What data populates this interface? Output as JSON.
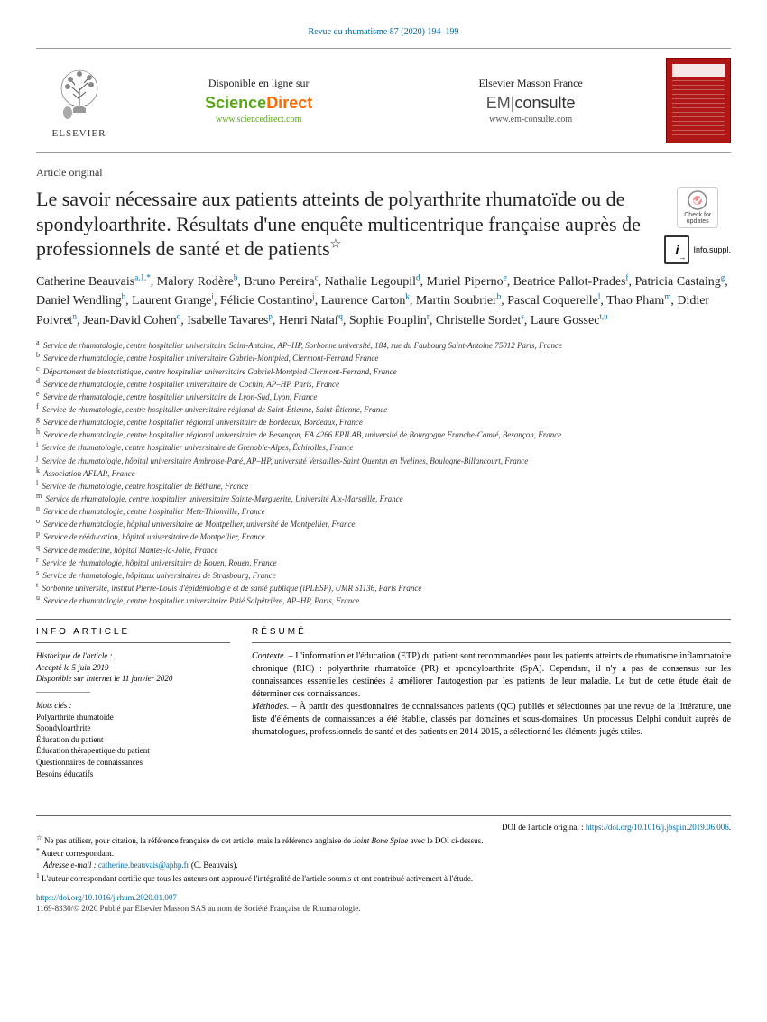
{
  "citation": "Revue du rhumatisme 87 (2020) 194–199",
  "branding": {
    "elsevier": "ELSEVIER",
    "sd_avail": "Disponible en ligne sur",
    "sd_logo_1": "Science",
    "sd_logo_2": "Direct",
    "sd_url": "www.sciencedirect.com",
    "em_title": "Elsevier Masson France",
    "em_logo_1": "EM",
    "em_logo_2": "consulte",
    "em_url": "www.em-consulte.com"
  },
  "article_type": "Article original",
  "title": "Le savoir nécessaire aux patients atteints de polyarthrite rhumatoïde ou de spondyloarthrite. Résultats d'une enquête multicentrique française auprès de professionnels de santé et de patients",
  "star": "☆",
  "badges": {
    "check": "Check for updates",
    "infosuppl": "Info.suppl."
  },
  "authors": [
    {
      "name": "Catherine Beauvais",
      "sup": "a,1,*"
    },
    {
      "name": "Malory Rodère",
      "sup": "b"
    },
    {
      "name": "Bruno Pereira",
      "sup": "c"
    },
    {
      "name": "Nathalie Legoupil",
      "sup": "d"
    },
    {
      "name": "Muriel Piperno",
      "sup": "e"
    },
    {
      "name": "Beatrice Pallot-Prades",
      "sup": "f"
    },
    {
      "name": "Patricia Castaing",
      "sup": "g"
    },
    {
      "name": "Daniel Wendling",
      "sup": "h"
    },
    {
      "name": "Laurent Grange",
      "sup": "i"
    },
    {
      "name": "Félicie Costantino",
      "sup": "j"
    },
    {
      "name": "Laurence Carton",
      "sup": "k"
    },
    {
      "name": "Martin Soubrier",
      "sup": "b"
    },
    {
      "name": "Pascal Coquerelle",
      "sup": "l"
    },
    {
      "name": "Thao Pham",
      "sup": "m"
    },
    {
      "name": "Didier Poivret",
      "sup": "n"
    },
    {
      "name": "Jean-David Cohen",
      "sup": "o"
    },
    {
      "name": "Isabelle Tavares",
      "sup": "p"
    },
    {
      "name": "Henri Nataf",
      "sup": "q"
    },
    {
      "name": "Sophie Pouplin",
      "sup": "r"
    },
    {
      "name": "Christelle Sordet",
      "sup": "s"
    },
    {
      "name": "Laure Gossec",
      "sup": "t,u"
    }
  ],
  "affiliations": [
    {
      "k": "a",
      "t": "Service de rhumatologie, centre hospitalier universitaire Saint-Antoine, AP–HP, Sorbonne université, 184, rue du Faubourg Saint-Antoine 75012 Paris, France"
    },
    {
      "k": "b",
      "t": "Service de rhumatologie, centre hospitalier universitaire Gabriel-Montpied, Clermont-Ferrand France"
    },
    {
      "k": "c",
      "t": "Département de biostatistique, centre hospitalier universitaire Gabriel-Montpied Clermont-Ferrand, France"
    },
    {
      "k": "d",
      "t": "Service de rhumatologie, centre hospitalier universitaire de Cochin, AP–HP, Paris, France"
    },
    {
      "k": "e",
      "t": "Service de rhumatologie, centre hospitalier universitaire de Lyon-Sud, Lyon, France"
    },
    {
      "k": "f",
      "t": "Service de rhumatologie, centre hospitalier universitaire régional de Saint-Étienne, Saint-Étienne, France"
    },
    {
      "k": "g",
      "t": "Service de rhumatologie, centre hospitalier régional universitaire de Bordeaux, Bordeaux, France"
    },
    {
      "k": "h",
      "t": "Service de rhumatologie, centre hospitalier régional universitaire de Besançon, EA 4266 EPILAB, université de Bourgogne Franche-Comté, Besançon, France"
    },
    {
      "k": "i",
      "t": "Service de rhumatologie, centre hospitalier universitaire de Grenoble-Alpes, Échirolles, France"
    },
    {
      "k": "j",
      "t": "Service de rhumatologie, hôpital universitaire Ambroise-Paré, AP–HP, université Versailles-Saint Quentin en Yvelines, Boulogne-Billancourt, France"
    },
    {
      "k": "k",
      "t": "Association AFLAR, France"
    },
    {
      "k": "l",
      "t": "Service de rhumatologie, centre hospitalier de Béthune, France"
    },
    {
      "k": "m",
      "t": "Service de rhumatologie, centre hospitalier universitaire Sainte-Marguerite, Université Aix-Marseille, France"
    },
    {
      "k": "n",
      "t": "Service de rhumatologie, centre hospitalier Metz-Thionville, France"
    },
    {
      "k": "o",
      "t": "Service de rhumatologie, hôpital universitaire de Montpellier, université de Montpellier, France"
    },
    {
      "k": "p",
      "t": "Service de rééducation, hôpital universitaire de Montpellier, France"
    },
    {
      "k": "q",
      "t": "Service de médecine, hôpital Mantes-la-Jolie, France"
    },
    {
      "k": "r",
      "t": "Service de rhumatologie, hôpital universitaire de Rouen, Rouen, France"
    },
    {
      "k": "s",
      "t": "Service de rhumatologie, hôpitaux universitaires de Strasbourg, France"
    },
    {
      "k": "t",
      "t": "Sorbonne université, institut Pierre-Louis d'épidémiologie et de santé publique (iPLESP), UMR S1136, Paris France"
    },
    {
      "k": "u",
      "t": "Service de rhumatologie, centre hospitalier universitaire Pitié Salpêtrière, AP–HP, Paris, France"
    }
  ],
  "info_header": "INFO ARTICLE",
  "resume_header": "RÉSUMÉ",
  "history_label": "Historique de l'article :",
  "history_1": "Accepté le 5 juin 2019",
  "history_2": "Disponible sur Internet le 11 janvier 2020",
  "keywords_label": "Mots clés :",
  "keywords": [
    "Polyarthrite rhumatoïde",
    "Spondyloarthrite",
    "Éducation du patient",
    "Éducation thérapeutique du patient",
    "Questionnaires de connaissances",
    "Besoins éducatifs"
  ],
  "abstract": {
    "p1_label": "Contexte. –",
    "p1": "L'information et l'éducation (ETP) du patient sont recommandées pour les patients atteints de rhumatisme inflammatoire chronique (RIC) : polyarthrite rhumatoïde (PR) et spondyloarthrite (SpA). Cependant, il n'y a pas de consensus sur les connaissances essentielles destinées à améliorer l'autogestion par les patients de leur maladie. Le but de cette étude était de déterminer ces connaissances.",
    "p2_label": "Méthodes. –",
    "p2": "À partir des questionnaires de connaissances patients (QC) publiés et sélectionnés par une revue de la littérature, une liste d'éléments de connaissances a été établie, classés par domaines et sous-domaines. Un processus Delphi conduit auprès de rhumatologues, professionnels de santé et des patients en 2014-2015, a sélectionné les éléments jugés utiles."
  },
  "footnotes": {
    "doi_orig_label": "DOI de l'article original :",
    "doi_orig": "https://doi.org/10.1016/j.jbspin.2019.06.006",
    "star": "☆",
    "star_text_1": "Ne pas utiliser, pour citation, la référence française de cet article, mais la référence anglaise de ",
    "star_ital": "Joint Bone Spine",
    "star_text_2": " avec le DOI ci-dessus.",
    "ast": "*",
    "ast_text": "Auteur correspondant.",
    "email_label": "Adresse e-mail :",
    "email": "catherine.beauvais@aphp.fr",
    "email_paren": "(C. Beauvais).",
    "one": "1",
    "one_text": "L'auteur correspondant certifie que tous les auteurs ont approuvé l'intégralité de l'article soumis et ont contribué activement à l'étude."
  },
  "doi": "https://doi.org/10.1016/j.rhum.2020.01.007",
  "copyright": "1169-8330/© 2020 Publié par Elsevier Masson SAS au nom de Société Française de Rhumatologie."
}
